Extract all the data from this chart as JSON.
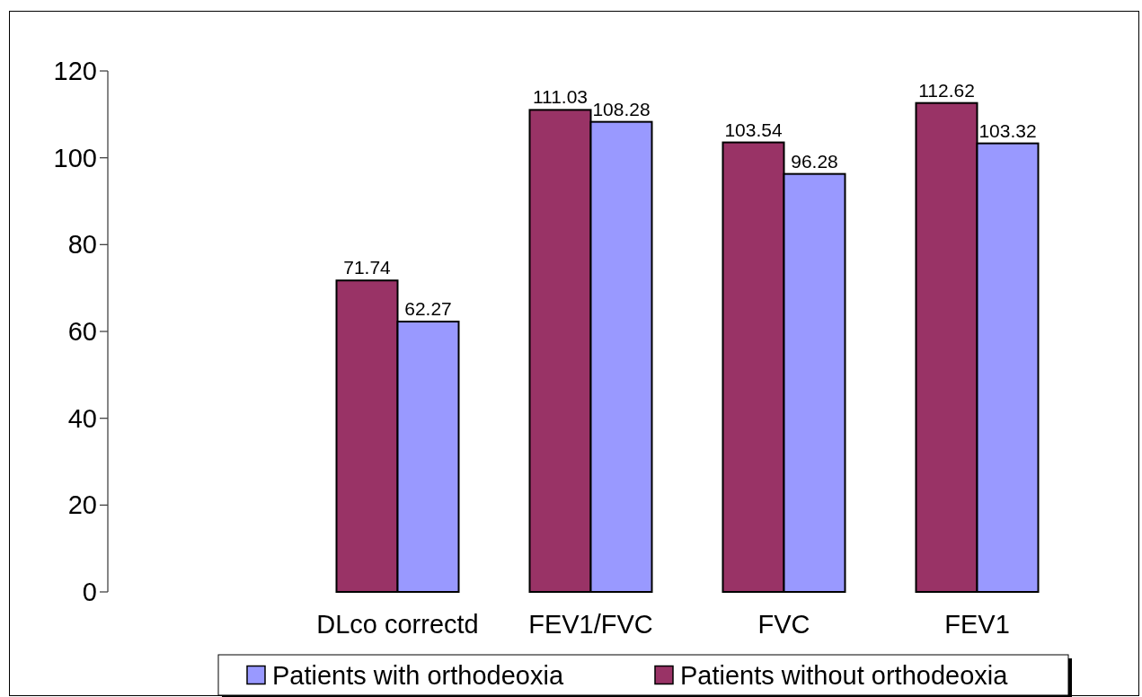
{
  "chart_data": {
    "type": "bar",
    "categories": [
      null,
      "DLco correctd",
      "FEV1/FVC",
      "FVC",
      "FEV1"
    ],
    "series": [
      {
        "name": "Patients without orthodeoxia",
        "color": "#993366",
        "values": [
          null,
          71.74,
          111.03,
          103.54,
          112.62
        ]
      },
      {
        "name": "Patients with orthodeoxia",
        "color": "#9999ff",
        "values": [
          null,
          62.27,
          108.28,
          96.28,
          103.32
        ]
      }
    ],
    "ylim": [
      0,
      120
    ],
    "yticks": [
      0,
      20,
      40,
      60,
      80,
      100,
      120
    ],
    "data_labels": true,
    "legend": "bottom"
  }
}
